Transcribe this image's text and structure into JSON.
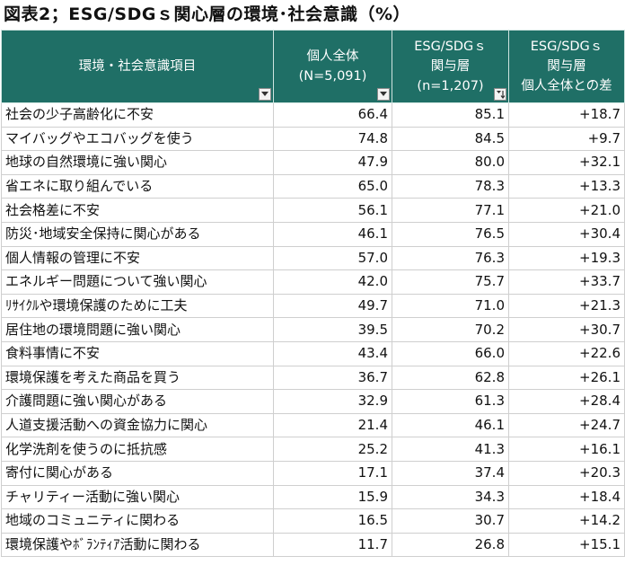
{
  "title": "図表2；ESG/SDGｓ関心層の環境･社会意識（%）",
  "columns": [
    {
      "lines": [
        "環境・社会意識項目"
      ],
      "filter_icon": "dropdown-arrow-icon"
    },
    {
      "lines": [
        "個人全体",
        "(N=5,091)"
      ],
      "filter_icon": "dropdown-arrow-icon"
    },
    {
      "lines": [
        "ESG/SDGｓ",
        "関与層",
        "(n=1,207)"
      ],
      "filter_icon": "sort-descending-icon"
    },
    {
      "lines": [
        "ESG/SDGｓ",
        "関与層",
        "個人全体との差"
      ],
      "filter_icon": null
    }
  ],
  "rows": [
    {
      "item": "社会の少子高齢化に不安",
      "all": "66.4",
      "esg": "85.1",
      "diff": "+18.7"
    },
    {
      "item": "マイバッグやエコバッグを使う",
      "all": "74.8",
      "esg": "84.5",
      "diff": "+9.7"
    },
    {
      "item": "地球の自然環境に強い関心",
      "all": "47.9",
      "esg": "80.0",
      "diff": "+32.1"
    },
    {
      "item": "省エネに取り組んでいる",
      "all": "65.0",
      "esg": "78.3",
      "diff": "+13.3"
    },
    {
      "item": "社会格差に不安",
      "all": "56.1",
      "esg": "77.1",
      "diff": "+21.0"
    },
    {
      "item": "防災･地域安全保持に関心がある",
      "all": "46.1",
      "esg": "76.5",
      "diff": "+30.4"
    },
    {
      "item": "個人情報の管理に不安",
      "all": "57.0",
      "esg": "76.3",
      "diff": "+19.3"
    },
    {
      "item": "エネルギー問題について強い関心",
      "all": "42.0",
      "esg": "75.7",
      "diff": "+33.7"
    },
    {
      "item": "ﾘｻｲｸﾙや環境保護のために工夫",
      "all": "49.7",
      "esg": "71.0",
      "diff": "+21.3"
    },
    {
      "item": "居住地の環境問題に強い関心",
      "all": "39.5",
      "esg": "70.2",
      "diff": "+30.7"
    },
    {
      "item": "食料事情に不安",
      "all": "43.4",
      "esg": "66.0",
      "diff": "+22.6"
    },
    {
      "item": "環境保護を考えた商品を買う",
      "all": "36.7",
      "esg": "62.8",
      "diff": "+26.1"
    },
    {
      "item": "介護問題に強い関心がある",
      "all": "32.9",
      "esg": "61.3",
      "diff": "+28.4"
    },
    {
      "item": "人道支援活動への資金協力に関心",
      "all": "21.4",
      "esg": "46.1",
      "diff": "+24.7"
    },
    {
      "item": "化学洗剤を使うのに抵抗感",
      "all": "25.2",
      "esg": "41.3",
      "diff": "+16.1"
    },
    {
      "item": "寄付に関心がある",
      "all": "17.1",
      "esg": "37.4",
      "diff": "+20.3"
    },
    {
      "item": "チャリティー活動に強い関心",
      "all": "15.9",
      "esg": "34.3",
      "diff": "+18.4"
    },
    {
      "item": "地域のコミュニティに関わる",
      "all": "16.5",
      "esg": "30.7",
      "diff": "+14.2"
    },
    {
      "item": "環境保護やﾎﾞﾗﾝﾃｨｱ活動に関わる",
      "all": "11.7",
      "esg": "26.8",
      "diff": "+15.1"
    }
  ]
}
